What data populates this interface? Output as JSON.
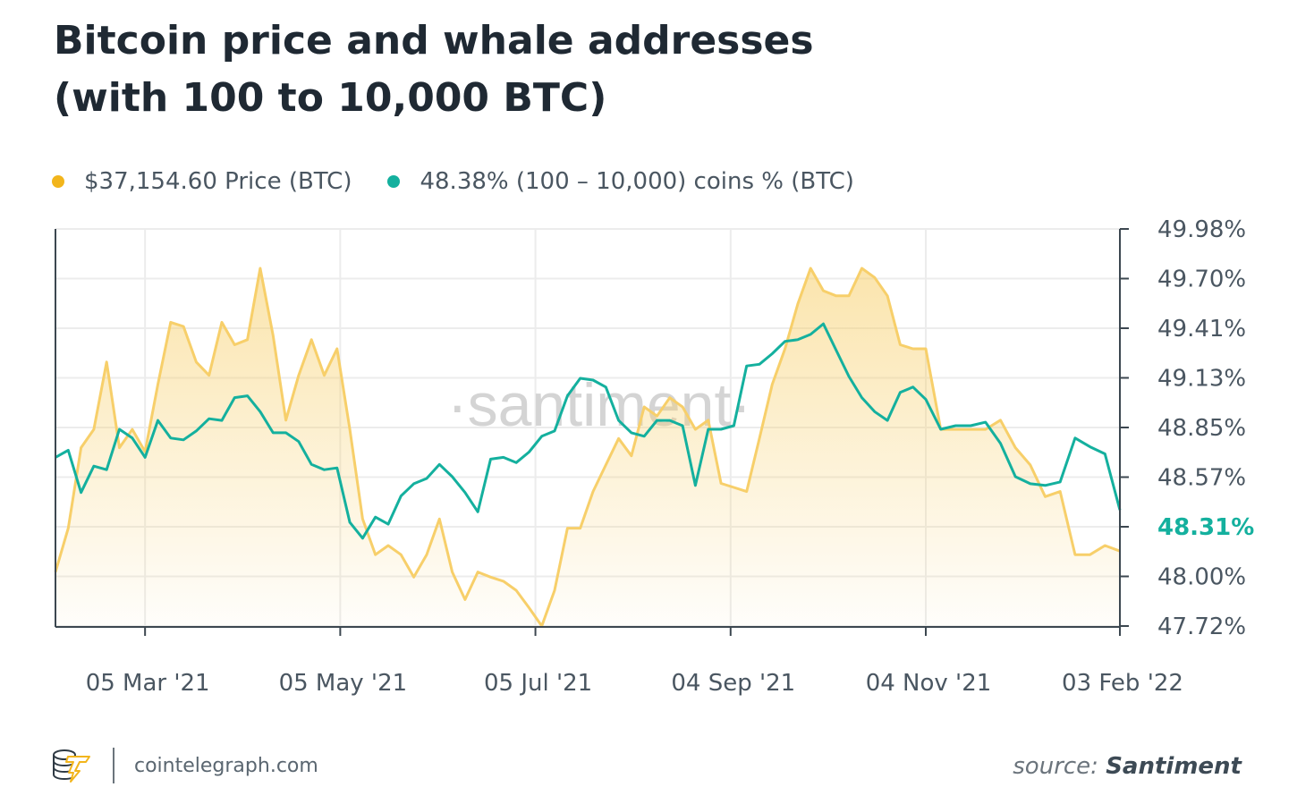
{
  "title_line1": "Bitcoin price and whale addresses",
  "title_line2": "(with 100 to 10,000 BTC)",
  "footer": {
    "site": "cointelegraph.com",
    "source_label": "source:",
    "source_name": "Santiment"
  },
  "watermark": "·santiment·",
  "colors": {
    "price": "#f7cf6a",
    "whale": "#14b09e",
    "axis": "#3c4750",
    "grid": "#ececec"
  },
  "chart_data": {
    "type": "line",
    "legend": [
      {
        "value": "$37,154.60",
        "label": "Price (BTC)"
      },
      {
        "value": "48.38%",
        "label": "(100 – 10,000) coins % (BTC)"
      }
    ],
    "legend_position": "top-left",
    "grid": true,
    "y_axis": {
      "side": "right",
      "range": [
        47.72,
        49.98
      ],
      "ticks": [
        "49.98%",
        "49.70%",
        "49.41%",
        "49.13%",
        "48.85%",
        "48.57%",
        "48.31%",
        "48.00%",
        "47.72%"
      ],
      "highlighted_tick": "48.31%"
    },
    "x_axis": {
      "range": [
        "2021-02-05",
        "2022-02-03"
      ],
      "ticks": [
        {
          "date": "2021-03-05",
          "label": "05 Mar '21"
        },
        {
          "date": "2021-05-05",
          "label": "05 May '21"
        },
        {
          "date": "2021-07-05",
          "label": "05 Jul '21"
        },
        {
          "date": "2021-09-04",
          "label": "04 Sep '21"
        },
        {
          "date": "2021-11-04",
          "label": "04 Nov '21"
        },
        {
          "date": "2022-02-03",
          "label": "03 Feb '22"
        }
      ]
    },
    "x": [
      "2021-02-05",
      "2021-02-09",
      "2021-02-13",
      "2021-02-17",
      "2021-02-21",
      "2021-02-25",
      "2021-03-01",
      "2021-03-05",
      "2021-03-09",
      "2021-03-13",
      "2021-03-17",
      "2021-03-21",
      "2021-03-25",
      "2021-03-29",
      "2021-04-02",
      "2021-04-06",
      "2021-04-10",
      "2021-04-14",
      "2021-04-18",
      "2021-04-22",
      "2021-04-26",
      "2021-04-30",
      "2021-05-04",
      "2021-05-08",
      "2021-05-12",
      "2021-05-16",
      "2021-05-20",
      "2021-05-24",
      "2021-05-28",
      "2021-06-01",
      "2021-06-05",
      "2021-06-09",
      "2021-06-13",
      "2021-06-17",
      "2021-06-21",
      "2021-06-25",
      "2021-06-29",
      "2021-07-03",
      "2021-07-07",
      "2021-07-11",
      "2021-07-15",
      "2021-07-19",
      "2021-07-23",
      "2021-07-27",
      "2021-07-31",
      "2021-08-04",
      "2021-08-08",
      "2021-08-12",
      "2021-08-16",
      "2021-08-20",
      "2021-08-24",
      "2021-08-28",
      "2021-09-01",
      "2021-09-05",
      "2021-09-09",
      "2021-09-13",
      "2021-09-17",
      "2021-09-21",
      "2021-09-25",
      "2021-09-29",
      "2021-10-03",
      "2021-10-07",
      "2021-10-11",
      "2021-10-15",
      "2021-10-19",
      "2021-10-23",
      "2021-10-27",
      "2021-10-31",
      "2021-11-04",
      "2021-11-11",
      "2021-11-18",
      "2021-11-25",
      "2021-12-02",
      "2021-12-09",
      "2021-12-16",
      "2021-12-23",
      "2021-12-30",
      "2022-01-06",
      "2022-01-13",
      "2022-01-20",
      "2022-01-27",
      "2022-02-03"
    ],
    "series": [
      {
        "name": "Price (BTC)",
        "unit": "USD",
        "axis": "hidden",
        "style": "area",
        "values": [
          35100,
          39400,
          47300,
          49100,
          55700,
          47300,
          49100,
          46900,
          53500,
          59600,
          59200,
          55700,
          54400,
          59600,
          57400,
          57900,
          64900,
          58300,
          50000,
          54400,
          57900,
          54400,
          57000,
          49100,
          40300,
          36800,
          37700,
          36800,
          34600,
          36800,
          40300,
          35100,
          32400,
          35100,
          34600,
          34200,
          33300,
          31600,
          29800,
          33300,
          39400,
          39400,
          43000,
          45600,
          48200,
          46500,
          51300,
          50400,
          52200,
          51300,
          49100,
          50000,
          43800,
          43400,
          43000,
          48200,
          53500,
          57000,
          61400,
          64900,
          62700,
          62200,
          62200,
          64900,
          64000,
          62200,
          57400,
          57000,
          57000,
          49100,
          49100,
          49100,
          49100,
          50000,
          47300,
          45600,
          42500,
          43000,
          36800,
          36800,
          37700,
          37154.6
        ]
      },
      {
        "name": "(100 – 10,000) coins % (BTC)",
        "unit": "%",
        "axis": "right",
        "style": "line",
        "values": [
          48.68,
          48.72,
          48.48,
          48.63,
          48.61,
          48.84,
          48.79,
          48.68,
          48.89,
          48.79,
          48.78,
          48.83,
          48.9,
          48.89,
          49.02,
          49.03,
          48.94,
          48.82,
          48.82,
          48.77,
          48.64,
          48.61,
          48.62,
          48.31,
          48.22,
          48.34,
          48.3,
          48.46,
          48.53,
          48.56,
          48.64,
          48.57,
          48.48,
          48.37,
          48.67,
          48.68,
          48.65,
          48.71,
          48.8,
          48.83,
          49.03,
          49.13,
          49.12,
          49.08,
          48.89,
          48.82,
          48.8,
          48.89,
          48.89,
          48.86,
          48.52,
          48.84,
          48.84,
          48.86,
          49.2,
          49.21,
          49.27,
          49.34,
          49.35,
          49.38,
          49.44,
          49.29,
          49.14,
          49.02,
          48.94,
          48.89,
          49.05,
          49.08,
          49.01,
          48.84,
          48.86,
          48.86,
          48.88,
          48.76,
          48.57,
          48.53,
          48.52,
          48.54,
          48.79,
          48.74,
          48.7,
          48.38
        ]
      }
    ]
  }
}
